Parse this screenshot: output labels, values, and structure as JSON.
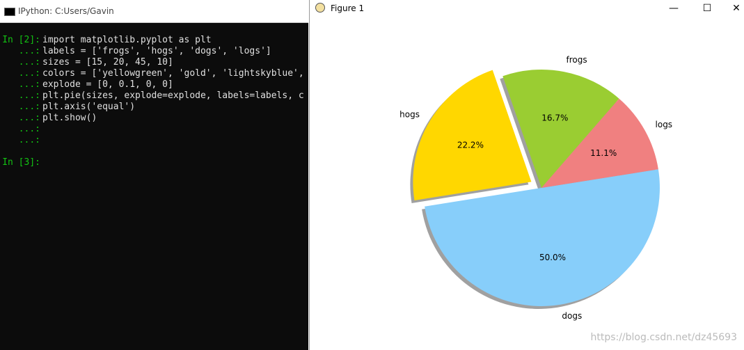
{
  "console": {
    "title": "IPython: C:Users/Gavin",
    "lines": [
      {
        "prompt": "In [2]:",
        "code": "import matplotlib.pyplot as plt"
      },
      {
        "prompt": "...:",
        "code": "labels = ['frogs', 'hogs', 'dogs', 'logs']"
      },
      {
        "prompt": "...:",
        "code": "sizes = [15, 20, 45, 10]"
      },
      {
        "prompt": "...:",
        "code": "colors = ['yellowgreen', 'gold', 'lightskyblue',"
      },
      {
        "prompt": "...:",
        "code": "explode = [0, 0.1, 0, 0]"
      },
      {
        "prompt": "...:",
        "code": "plt.pie(sizes, explode=explode, labels=labels, c"
      },
      {
        "prompt": "...:",
        "code": "plt.axis('equal')"
      },
      {
        "prompt": "...:",
        "code": "plt.show()"
      },
      {
        "prompt": "...:",
        "code": ""
      },
      {
        "prompt": "...:",
        "code": ""
      },
      {
        "prompt": "",
        "code": ""
      },
      {
        "prompt": "In [3]:",
        "code": ""
      }
    ]
  },
  "figure": {
    "title": "Figure 1",
    "watermark": "https://blog.csdn.net/dz45693"
  },
  "chart_data": {
    "type": "pie",
    "categories": [
      "frogs",
      "hogs",
      "dogs",
      "logs"
    ],
    "values": [
      16.7,
      22.2,
      50.0,
      11.1
    ],
    "value_labels": [
      "16.7%",
      "22.2%",
      "50.0%",
      "11.1%"
    ],
    "colors": [
      "#9acd32",
      "#ffd700",
      "#87cefa",
      "#f08080"
    ],
    "explode": [
      0,
      0.1,
      0,
      0
    ],
    "shadow": true
  }
}
